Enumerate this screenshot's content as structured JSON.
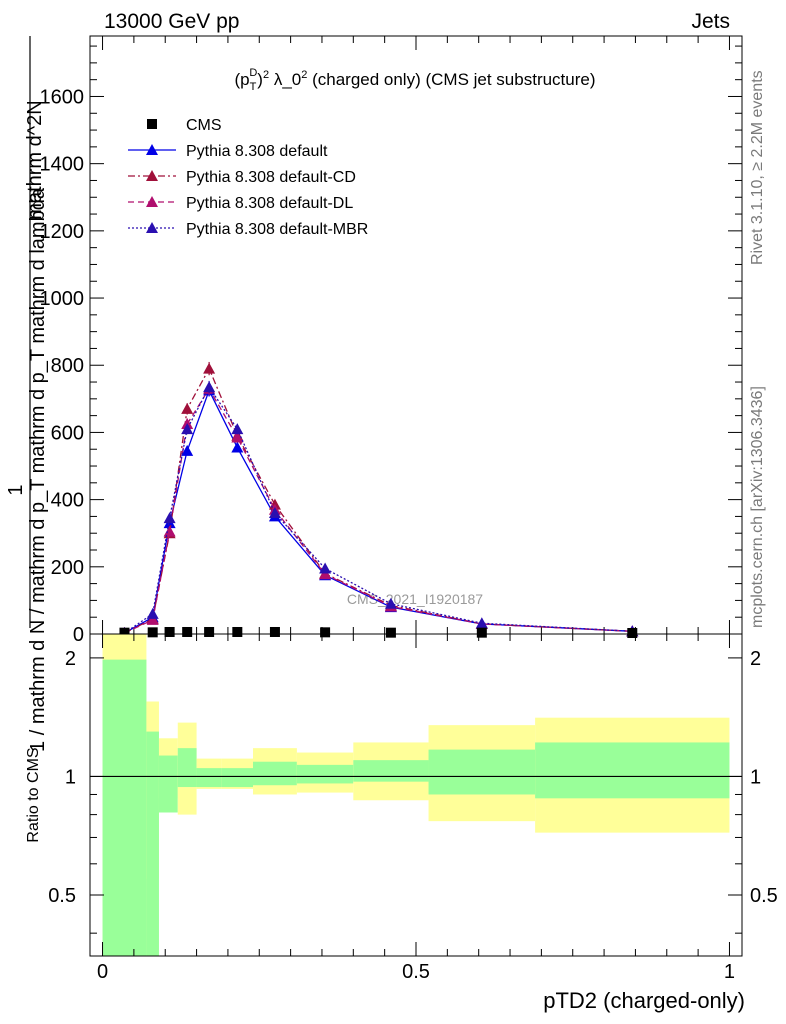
{
  "header": {
    "energy_label": "13000 GeV pp",
    "process_label": "Jets"
  },
  "side": {
    "rivet_label": "Rivet 3.1.10, ≥ 2.2M events",
    "source_label": "mcplots.cern.ch [arXiv:1306.3436]"
  },
  "plot": {
    "title": "(p_T^D)^2 λ_0^2 (charged only) (CMS jet substructure)",
    "ylabel_numerator": "mathrm d^2N",
    "ylabel_denominator": "mathrm d p_T mathrm d lambda",
    "ylabel_full": "1 / mathrm d N / mathrm d p_T mathrm d p_T mathrm d lambda",
    "ratio_ylabel": "Ratio to CMS",
    "xlabel": "pTD2 (charged-only)",
    "watermark": "CMS_2021_I1920187"
  },
  "chart_data": {
    "type": "line",
    "xlim": [
      -0.02,
      1.02
    ],
    "ylim": [
      0,
      1780
    ],
    "ratio_ylim": [
      0.35,
      2.3
    ],
    "x_ticks": [
      "0",
      "0.5",
      "1"
    ],
    "x_tick_values": [
      0,
      0.5,
      1
    ],
    "y_ticks": [
      "0",
      "200",
      "400",
      "600",
      "800",
      "1000",
      "1200",
      "1400",
      "1600"
    ],
    "y_tick_values": [
      0,
      200,
      400,
      600,
      800,
      1000,
      1200,
      1400,
      1600
    ],
    "ratio_ticks": [
      "0.5",
      "1",
      "2"
    ],
    "ratio_tick_values": [
      0.5,
      1,
      2
    ],
    "legend": [
      "CMS",
      "Pythia 8.308 default",
      "Pythia 8.308 default-CD",
      "Pythia 8.308 default-DL",
      "Pythia 8.308 default-MBR"
    ],
    "cms": {
      "name": "CMS",
      "x": [
        0.035,
        0.08,
        0.107,
        0.135,
        0.17,
        0.215,
        0.275,
        0.355,
        0.46,
        0.605,
        0.845
      ],
      "y": [
        1,
        2,
        3,
        3,
        3,
        3,
        3,
        2,
        1,
        1,
        0
      ]
    },
    "series": [
      {
        "name": "Pythia 8.308 default",
        "color": "#0000e6",
        "dash": "",
        "x": [
          0.035,
          0.08,
          0.107,
          0.135,
          0.17,
          0.215,
          0.275,
          0.355,
          0.46,
          0.605,
          0.845
        ],
        "y": [
          3,
          50,
          330,
          545,
          725,
          555,
          350,
          175,
          80,
          30,
          8
        ]
      },
      {
        "name": "Pythia 8.308 default-CD",
        "color": "#a0103a",
        "dash": "7,3,2,3",
        "x": [
          0.035,
          0.08,
          0.107,
          0.135,
          0.17,
          0.215,
          0.275,
          0.355,
          0.46,
          0.605,
          0.845
        ],
        "y": [
          3,
          45,
          300,
          670,
          790,
          590,
          385,
          180,
          85,
          30,
          8
        ]
      },
      {
        "name": "Pythia 8.308 default-DL",
        "color": "#b00e6e",
        "dash": "6,4",
        "x": [
          0.035,
          0.08,
          0.107,
          0.135,
          0.17,
          0.215,
          0.275,
          0.355,
          0.46,
          0.605,
          0.845
        ],
        "y": [
          3,
          42,
          305,
          625,
          730,
          585,
          370,
          178,
          82,
          30,
          8
        ]
      },
      {
        "name": "Pythia 8.308 default-MBR",
        "color": "#2a0fb0",
        "dash": "2,2",
        "x": [
          0.035,
          0.08,
          0.107,
          0.135,
          0.17,
          0.215,
          0.275,
          0.355,
          0.46,
          0.605,
          0.845
        ],
        "y": [
          3,
          60,
          345,
          610,
          735,
          610,
          360,
          195,
          90,
          32,
          8
        ]
      }
    ],
    "ratio_bands": {
      "x_edges": [
        0.0,
        0.07,
        0.09,
        0.12,
        0.15,
        0.19,
        0.24,
        0.31,
        0.4,
        0.52,
        0.69,
        1.0
      ],
      "inner_low": [
        0.3,
        0.3,
        0.81,
        0.94,
        0.94,
        0.94,
        0.95,
        0.96,
        0.97,
        0.9,
        0.88
      ],
      "inner_high": [
        1.98,
        1.3,
        1.13,
        1.18,
        1.05,
        1.05,
        1.09,
        1.07,
        1.1,
        1.17,
        1.22
      ],
      "outer_low": [
        0.3,
        0.55,
        0.88,
        0.8,
        0.93,
        0.93,
        0.9,
        0.91,
        0.87,
        0.77,
        0.72
      ],
      "outer_high": [
        2.3,
        1.55,
        1.25,
        1.37,
        1.11,
        1.11,
        1.18,
        1.15,
        1.22,
        1.35,
        1.41
      ]
    },
    "colors": {
      "inner_band": "#99ff99",
      "outer_band": "#ffff99"
    }
  }
}
